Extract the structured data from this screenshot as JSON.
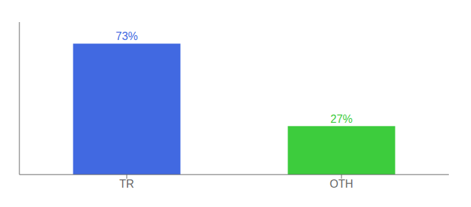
{
  "chart_data": {
    "type": "bar",
    "categories": [
      "TR",
      "OTH"
    ],
    "values": [
      73,
      27
    ],
    "value_labels": [
      "73%",
      "27%"
    ],
    "colors": [
      "#4169e1",
      "#3dcc3d"
    ],
    "ylim": [
      0,
      85
    ],
    "data_labels": true,
    "tick_labels": "x",
    "grid": false
  }
}
